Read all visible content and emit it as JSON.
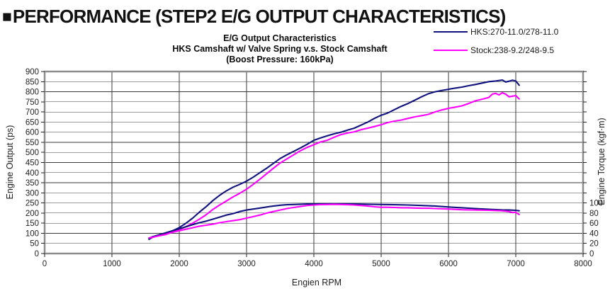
{
  "header": {
    "marker": "■",
    "title": "PERFORMANCE (STEP2 E/G OUTPUT CHARACTERISTICS)"
  },
  "chart_data": {
    "type": "line",
    "title_lines": [
      "E/G Output Characteristics",
      "HKS Camshaft w/ Valve Spring v.s. Stock Camshaft",
      "(Boost Pressure: 160kPa)"
    ],
    "xlabel": "Engien RPM",
    "ylabel_left": "Engine Output (ps)",
    "ylabel_right": "Engine Torque (kgf·m)",
    "x_axis": {
      "min": 0,
      "max": 8000,
      "tick_step": 1000
    },
    "y_axis_left": {
      "min": 0,
      "max": 900,
      "tick_step": 50
    },
    "y_axis_right": {
      "ticks": [
        0,
        20,
        40,
        60,
        80,
        100
      ],
      "note": "20 kgf·m per gridline, aligned with 50 ps gridlines"
    },
    "grid": {
      "horizontal": true,
      "vertical": true
    },
    "legend": [
      {
        "label": "HKS:270-11.0/278-11.0",
        "color": "#10127e"
      },
      {
        "label": "Stock:238-9.2/248-9.5",
        "color": "#ff00ff"
      }
    ],
    "colors": {
      "hks": "#10127e",
      "stock": "#ff00ff",
      "grid": "#3a3a3a",
      "border": "#8c8c8c"
    },
    "series": [
      {
        "name": "hks-power",
        "unit": "ps",
        "axis": "left",
        "color": "#10127e",
        "points": [
          [
            1550,
            70
          ],
          [
            1600,
            80
          ],
          [
            1700,
            90
          ],
          [
            1800,
            100
          ],
          [
            1900,
            112
          ],
          [
            2000,
            128
          ],
          [
            2100,
            150
          ],
          [
            2200,
            175
          ],
          [
            2300,
            205
          ],
          [
            2400,
            232
          ],
          [
            2500,
            262
          ],
          [
            2600,
            288
          ],
          [
            2700,
            310
          ],
          [
            2800,
            328
          ],
          [
            2900,
            342
          ],
          [
            3000,
            358
          ],
          [
            3100,
            378
          ],
          [
            3200,
            400
          ],
          [
            3300,
            422
          ],
          [
            3400,
            446
          ],
          [
            3500,
            470
          ],
          [
            3600,
            488
          ],
          [
            3700,
            505
          ],
          [
            3800,
            522
          ],
          [
            3900,
            540
          ],
          [
            4000,
            560
          ],
          [
            4100,
            572
          ],
          [
            4200,
            582
          ],
          [
            4300,
            592
          ],
          [
            4400,
            600
          ],
          [
            4500,
            610
          ],
          [
            4600,
            620
          ],
          [
            4700,
            635
          ],
          [
            4800,
            650
          ],
          [
            4900,
            668
          ],
          [
            5000,
            684
          ],
          [
            5100,
            695
          ],
          [
            5200,
            712
          ],
          [
            5300,
            728
          ],
          [
            5400,
            742
          ],
          [
            5500,
            758
          ],
          [
            5600,
            775
          ],
          [
            5700,
            790
          ],
          [
            5800,
            800
          ],
          [
            5900,
            806
          ],
          [
            6000,
            812
          ],
          [
            6100,
            818
          ],
          [
            6200,
            823
          ],
          [
            6300,
            830
          ],
          [
            6400,
            836
          ],
          [
            6500,
            843
          ],
          [
            6600,
            850
          ],
          [
            6700,
            853
          ],
          [
            6800,
            858
          ],
          [
            6850,
            848
          ],
          [
            6900,
            852
          ],
          [
            6950,
            857
          ],
          [
            7000,
            853
          ],
          [
            7050,
            832
          ]
        ]
      },
      {
        "name": "stock-power",
        "unit": "ps",
        "axis": "left",
        "color": "#ff00ff",
        "points": [
          [
            1550,
            76
          ],
          [
            1600,
            82
          ],
          [
            1700,
            88
          ],
          [
            1800,
            94
          ],
          [
            1900,
            106
          ],
          [
            2000,
            118
          ],
          [
            2100,
            133
          ],
          [
            2200,
            150
          ],
          [
            2300,
            170
          ],
          [
            2400,
            192
          ],
          [
            2500,
            218
          ],
          [
            2600,
            240
          ],
          [
            2700,
            260
          ],
          [
            2800,
            280
          ],
          [
            2900,
            298
          ],
          [
            3000,
            318
          ],
          [
            3100,
            342
          ],
          [
            3200,
            368
          ],
          [
            3300,
            395
          ],
          [
            3400,
            422
          ],
          [
            3500,
            448
          ],
          [
            3600,
            468
          ],
          [
            3700,
            488
          ],
          [
            3800,
            508
          ],
          [
            3900,
            525
          ],
          [
            4000,
            538
          ],
          [
            4100,
            552
          ],
          [
            4200,
            560
          ],
          [
            4300,
            575
          ],
          [
            4400,
            588
          ],
          [
            4500,
            596
          ],
          [
            4600,
            602
          ],
          [
            4700,
            612
          ],
          [
            4800,
            620
          ],
          [
            4900,
            628
          ],
          [
            5000,
            637
          ],
          [
            5100,
            648
          ],
          [
            5200,
            655
          ],
          [
            5300,
            660
          ],
          [
            5400,
            668
          ],
          [
            5500,
            676
          ],
          [
            5600,
            682
          ],
          [
            5700,
            688
          ],
          [
            5800,
            700
          ],
          [
            5900,
            710
          ],
          [
            6000,
            718
          ],
          [
            6100,
            724
          ],
          [
            6200,
            730
          ],
          [
            6300,
            742
          ],
          [
            6400,
            755
          ],
          [
            6500,
            763
          ],
          [
            6600,
            772
          ],
          [
            6650,
            788
          ],
          [
            6700,
            792
          ],
          [
            6750,
            784
          ],
          [
            6800,
            795
          ],
          [
            6850,
            788
          ],
          [
            6900,
            775
          ],
          [
            6950,
            778
          ],
          [
            7000,
            781
          ],
          [
            7050,
            764
          ]
        ]
      },
      {
        "name": "hks-torque",
        "unit": "kgf·m",
        "axis": "right",
        "color": "#10127e",
        "points": [
          [
            1550,
            30
          ],
          [
            1600,
            33
          ],
          [
            1700,
            37
          ],
          [
            1800,
            41
          ],
          [
            1900,
            45
          ],
          [
            2000,
            49
          ],
          [
            2100,
            53
          ],
          [
            2200,
            57
          ],
          [
            2300,
            61
          ],
          [
            2400,
            64
          ],
          [
            2500,
            68
          ],
          [
            2600,
            72
          ],
          [
            2700,
            76
          ],
          [
            2800,
            79
          ],
          [
            2900,
            83
          ],
          [
            3000,
            86
          ],
          [
            3100,
            88
          ],
          [
            3200,
            90
          ],
          [
            3300,
            92
          ],
          [
            3400,
            94
          ],
          [
            3500,
            95.5
          ],
          [
            3600,
            96.5
          ],
          [
            3700,
            97
          ],
          [
            3800,
            97.5
          ],
          [
            3900,
            98
          ],
          [
            4000,
            98
          ],
          [
            4200,
            98.2
          ],
          [
            4400,
            98.2
          ],
          [
            4600,
            98
          ],
          [
            4800,
            97.5
          ],
          [
            5000,
            97
          ],
          [
            5200,
            96.5
          ],
          [
            5400,
            96
          ],
          [
            5600,
            95
          ],
          [
            5800,
            94
          ],
          [
            6000,
            92
          ],
          [
            6200,
            90.5
          ],
          [
            6400,
            89
          ],
          [
            6600,
            87.5
          ],
          [
            6800,
            86.3
          ],
          [
            6900,
            86
          ],
          [
            7000,
            85.5
          ],
          [
            7050,
            84.5
          ]
        ]
      },
      {
        "name": "stock-torque",
        "unit": "kgf·m",
        "axis": "right",
        "color": "#ff00ff",
        "points": [
          [
            1550,
            31
          ],
          [
            1600,
            32
          ],
          [
            1700,
            35
          ],
          [
            1800,
            38
          ],
          [
            1900,
            42
          ],
          [
            2000,
            45
          ],
          [
            2100,
            48
          ],
          [
            2200,
            51
          ],
          [
            2300,
            54
          ],
          [
            2400,
            56
          ],
          [
            2500,
            58
          ],
          [
            2600,
            61
          ],
          [
            2700,
            63
          ],
          [
            2800,
            65
          ],
          [
            2900,
            67
          ],
          [
            3000,
            70
          ],
          [
            3100,
            73
          ],
          [
            3200,
            76
          ],
          [
            3300,
            80
          ],
          [
            3400,
            83
          ],
          [
            3500,
            86
          ],
          [
            3600,
            89
          ],
          [
            3700,
            91
          ],
          [
            3800,
            93
          ],
          [
            3900,
            95
          ],
          [
            4000,
            96
          ],
          [
            4100,
            96.8
          ],
          [
            4200,
            97
          ],
          [
            4300,
            97.2
          ],
          [
            4400,
            97
          ],
          [
            4500,
            96.5
          ],
          [
            4600,
            96
          ],
          [
            4700,
            95
          ],
          [
            4800,
            94
          ],
          [
            4900,
            92.5
          ],
          [
            5000,
            91.5
          ],
          [
            5100,
            91.5
          ],
          [
            5200,
            91
          ],
          [
            5300,
            90.5
          ],
          [
            5400,
            90.5
          ],
          [
            5500,
            90
          ],
          [
            5600,
            89.5
          ],
          [
            5700,
            89.5
          ],
          [
            5800,
            89
          ],
          [
            6000,
            88
          ],
          [
            6200,
            86.5
          ],
          [
            6400,
            86
          ],
          [
            6600,
            85.5
          ],
          [
            6800,
            84.5
          ],
          [
            6900,
            83
          ],
          [
            6950,
            81
          ],
          [
            7000,
            81.5
          ],
          [
            7050,
            77
          ]
        ]
      }
    ]
  }
}
